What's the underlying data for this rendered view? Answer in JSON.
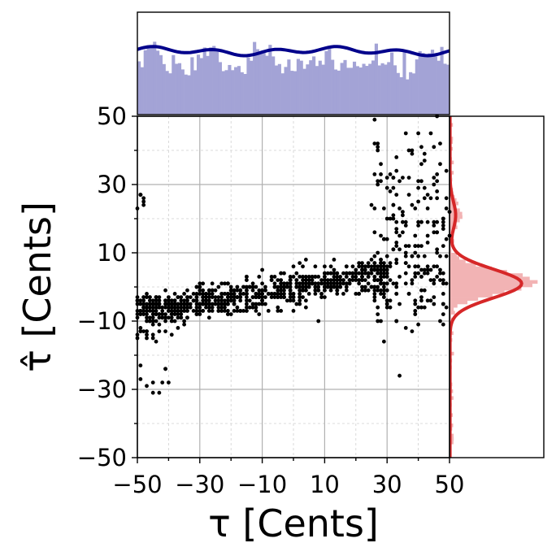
{
  "chart_data": {
    "type": "scatter",
    "title": "",
    "xlabel": "τ [Cents]",
    "ylabel": "τ̂ [Cents]",
    "xlim": [
      -50,
      50
    ],
    "ylim": [
      -50,
      50
    ],
    "x_ticks": [
      "−50",
      "−30",
      "−10",
      "10",
      "30",
      "50"
    ],
    "y_ticks": [
      "−50",
      "−30",
      "−10",
      "10",
      "30",
      "50"
    ],
    "grid": "major solid, minor dashed",
    "marginals": {
      "top": {
        "type": "histogram + kde",
        "axis": "x",
        "kde_color": "#00008b",
        "hist_color": "#a3a3d6",
        "shape": "near-uniform"
      },
      "right": {
        "type": "histogram + kde",
        "axis": "y",
        "kde_color": "#d62728",
        "hist_color": "#f2b3b4",
        "peak_at": 1,
        "secondary_bump_at": 21
      }
    },
    "series": [
      {
        "color": "#000000",
        "clusters": [
          {
            "x": [
              -50,
              -35
            ],
            "y_center": -5,
            "spread": 1.5,
            "n": 120
          },
          {
            "x": [
              -50,
              -35
            ],
            "y_center": -8,
            "spread": 1.5,
            "n": 60
          },
          {
            "x": [
              -35,
              30
            ],
            "y_trend_from": -5,
            "y_trend_to": 4,
            "spread": 2.5,
            "n": 600
          },
          {
            "x": [
              25,
              50
            ],
            "y_center": 20,
            "spread": 12,
            "n": 160
          },
          {
            "x": [
              25,
              50
            ],
            "y_center": 0,
            "spread": 6,
            "n": 90
          },
          {
            "x": [
              -50,
              -40
            ],
            "y_center": -13,
            "spread": 1.5,
            "n": 18
          },
          {
            "x": [
              -50,
              -40
            ],
            "y_center": -28,
            "spread": 2,
            "n": 10
          },
          {
            "x": [
              -50,
              -47
            ],
            "y_center": 24,
            "spread": 2,
            "n": 8
          }
        ]
      }
    ]
  }
}
